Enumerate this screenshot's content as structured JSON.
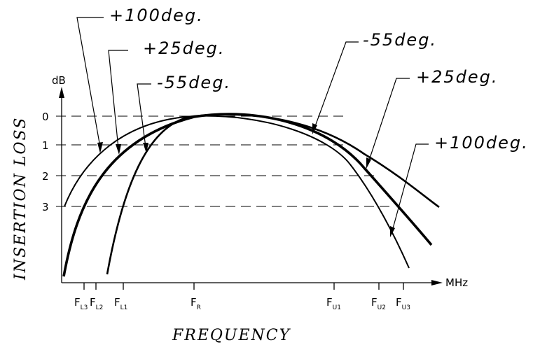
{
  "chart_data": {
    "type": "line",
    "title": "",
    "xlabel": "FREQUENCY",
    "ylabel": "INSERTION LOSS",
    "y_unit": "dB",
    "x_unit": "MHz",
    "y_ticks": [
      "0",
      "1",
      "2",
      "3"
    ],
    "x_ticks": [
      {
        "main": "F",
        "sub": "L3"
      },
      {
        "main": "F",
        "sub": "L2"
      },
      {
        "main": "F",
        "sub": "L1"
      },
      {
        "main": "F",
        "sub": "R"
      },
      {
        "main": "F",
        "sub": "U1"
      },
      {
        "main": "F",
        "sub": "U2"
      },
      {
        "main": "F",
        "sub": "U3"
      }
    ],
    "series": [
      {
        "name": "+100deg."
      },
      {
        "name": "+25deg."
      },
      {
        "name": "-55deg."
      }
    ],
    "annotations_left": [
      "+100deg.",
      "+25deg.",
      "-55deg."
    ],
    "annotations_right": [
      "-55deg.",
      "+25deg.",
      "+100deg."
    ],
    "grid": "dashed horizontal lines at 0, 1, 2, 3 dB"
  }
}
